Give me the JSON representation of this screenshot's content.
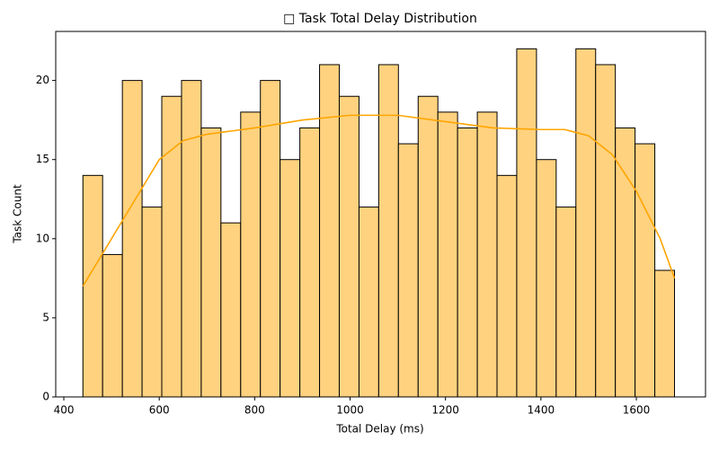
{
  "chart_data": {
    "type": "histogram",
    "title": "□ Task Total Delay Distribution",
    "x_label": "Total Delay (ms)",
    "y_label": "Task Count",
    "bins": [
      440,
      481.3,
      522.7,
      564,
      605.3,
      646.7,
      688,
      729.3,
      770.7,
      812,
      853.3,
      894.7,
      936,
      977.3,
      1018.7,
      1060,
      1101.3,
      1142.7,
      1184,
      1225.3,
      1266.7,
      1308,
      1349.3,
      1390.7,
      1432,
      1473.3,
      1514.7,
      1556,
      1597.3,
      1638.7,
      1680
    ],
    "values": [
      14,
      9,
      20,
      12,
      19,
      20,
      17,
      11,
      18,
      20,
      15,
      17,
      21,
      19,
      12,
      21,
      16,
      19,
      18,
      17,
      18,
      14,
      22,
      15,
      12,
      22,
      21,
      17,
      16,
      8
    ],
    "color": "#ffd27f",
    "edge_color": "#000000",
    "kde": {
      "color": "#ffa500",
      "x": [
        440,
        500,
        550,
        600,
        650,
        700,
        800,
        900,
        1000,
        1100,
        1200,
        1300,
        1400,
        1450,
        1500,
        1550,
        1600,
        1650,
        1680
      ],
      "values": [
        7,
        10,
        12.5,
        15,
        16.2,
        16.6,
        17,
        17.5,
        17.8,
        17.8,
        17.4,
        17,
        16.9,
        16.9,
        16.5,
        15.3,
        13,
        10,
        7.5
      ]
    },
    "xlim": [
      383,
      1745
    ],
    "ylim": [
      0,
      23.1
    ],
    "xticks": [
      400,
      600,
      800,
      1000,
      1200,
      1400,
      1600
    ],
    "yticks": [
      0,
      5,
      10,
      15,
      20
    ]
  }
}
